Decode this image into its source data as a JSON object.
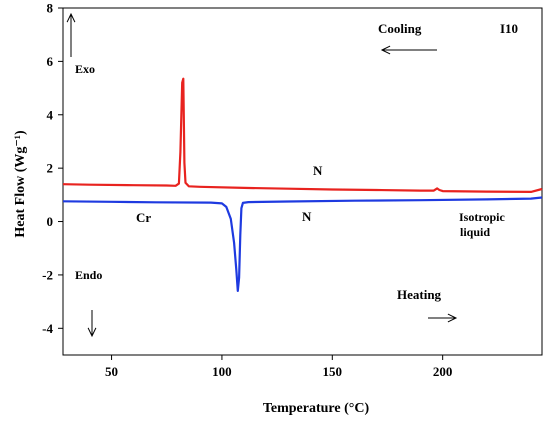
{
  "chart_data": {
    "type": "line",
    "title": "",
    "xlabel": "Temperature (°C)",
    "ylabel": "Heat Flow (Wg⁻¹)",
    "xlim": [
      28,
      245
    ],
    "ylim": [
      -5,
      8
    ],
    "xticks": [
      50,
      100,
      150,
      200
    ],
    "yticks": [
      -4,
      -2,
      0,
      2,
      4,
      6,
      8
    ],
    "grid": false,
    "legend": "none",
    "series": [
      {
        "role": "cooling",
        "color": "#e8231f",
        "points": [
          [
            28,
            1.4
          ],
          [
            40,
            1.38
          ],
          [
            60,
            1.36
          ],
          [
            75,
            1.35
          ],
          [
            79,
            1.34
          ],
          [
            80.5,
            1.42
          ],
          [
            81.2,
            2.6
          ],
          [
            82.0,
            5.2
          ],
          [
            82.5,
            5.35
          ],
          [
            83.0,
            2.2
          ],
          [
            83.5,
            1.45
          ],
          [
            85,
            1.32
          ],
          [
            90,
            1.3
          ],
          [
            110,
            1.26
          ],
          [
            130,
            1.23
          ],
          [
            150,
            1.2
          ],
          [
            170,
            1.18
          ],
          [
            190,
            1.16
          ],
          [
            196,
            1.16
          ],
          [
            197.5,
            1.24
          ],
          [
            198.5,
            1.18
          ],
          [
            200,
            1.14
          ],
          [
            220,
            1.12
          ],
          [
            240,
            1.11
          ],
          [
            245,
            1.22
          ]
        ]
      },
      {
        "role": "heating",
        "color": "#1e3ae0",
        "points": [
          [
            28,
            0.76
          ],
          [
            50,
            0.74
          ],
          [
            70,
            0.72
          ],
          [
            95,
            0.71
          ],
          [
            100,
            0.68
          ],
          [
            102,
            0.55
          ],
          [
            104,
            0.1
          ],
          [
            105.5,
            -0.8
          ],
          [
            106.5,
            -1.8
          ],
          [
            107.2,
            -2.6
          ],
          [
            107.8,
            -2.1
          ],
          [
            108.3,
            -0.5
          ],
          [
            108.8,
            0.5
          ],
          [
            109.5,
            0.7
          ],
          [
            112,
            0.73
          ],
          [
            130,
            0.75
          ],
          [
            160,
            0.78
          ],
          [
            190,
            0.8
          ],
          [
            220,
            0.83
          ],
          [
            240,
            0.86
          ],
          [
            245,
            0.9
          ]
        ]
      }
    ],
    "annotations": {
      "cooling": "Cooling",
      "sample": "I10",
      "exo": "Exo",
      "endo": "Endo",
      "heating": "Heating",
      "n_upper": "N",
      "n_lower": "N",
      "cr": "Cr",
      "iso1": "Isotropic",
      "iso2": "liquid"
    }
  }
}
